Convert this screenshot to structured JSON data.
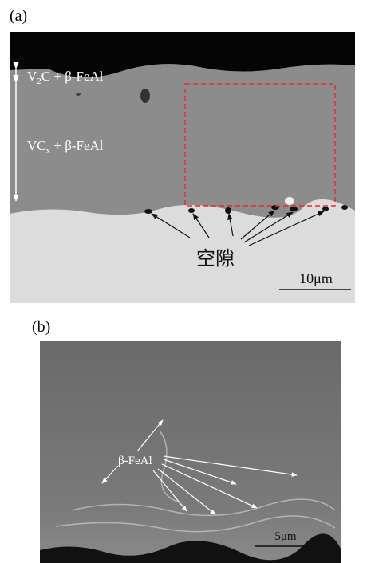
{
  "panel_a": {
    "label": "(a)",
    "layer_top": {
      "lead": "V",
      "sub": "2",
      "tail": "C + β-FeAl"
    },
    "layer_main": {
      "lead": "VC",
      "sub": "x",
      "tail": " + β-FeAl"
    },
    "void_label": "空隙",
    "scale": "10μm"
  },
  "panel_b": {
    "label": "(b)",
    "phase_label": "β-FeAl",
    "scale": "5μm"
  }
}
